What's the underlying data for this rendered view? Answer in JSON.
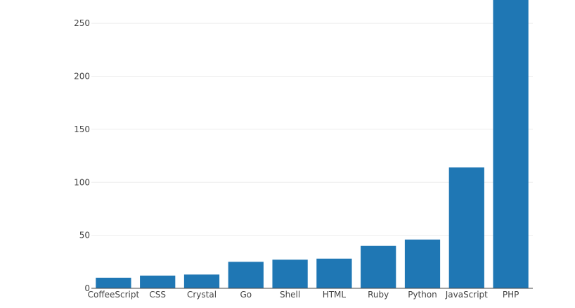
{
  "chart_data": {
    "type": "bar",
    "title": "",
    "xlabel": "",
    "ylabel": "",
    "categories": [
      "CoffeeScript",
      "CSS",
      "Crystal",
      "Go",
      "Shell",
      "HTML",
      "Ruby",
      "Python",
      "JavaScript",
      "PHP"
    ],
    "values": [
      10,
      12,
      13,
      25,
      27,
      28,
      40,
      46,
      114,
      272
    ],
    "ylim": [
      0,
      272
    ],
    "yticks": [
      0,
      50,
      100,
      150,
      200,
      250
    ],
    "grid": true,
    "legend": "none",
    "colors": {
      "bar": "#1f77b4",
      "grid": "#eeeeee",
      "axis": "#444444",
      "text": "#444444"
    }
  }
}
